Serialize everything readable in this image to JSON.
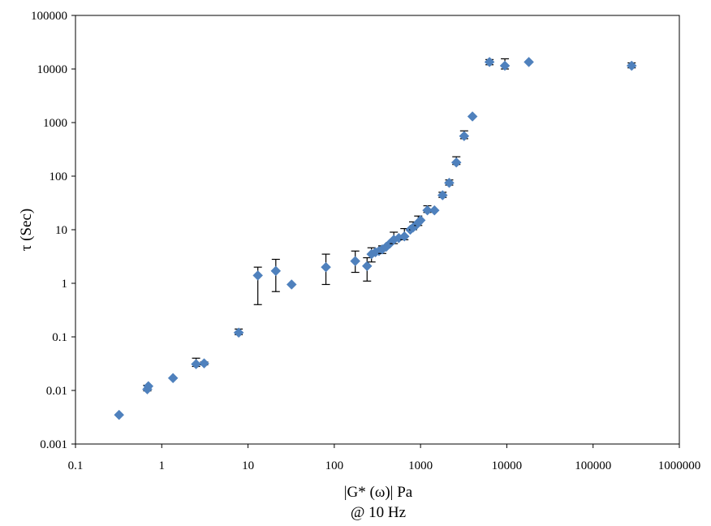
{
  "chart_data": {
    "type": "scatter",
    "title": "",
    "xlabel": "|G* (ω)| Pa",
    "xlabel_sub": "@ 10 Hz",
    "ylabel": "τ (Sec)",
    "xscale": "log",
    "yscale": "log",
    "xlim": [
      0.1,
      1000000
    ],
    "ylim": [
      0.001,
      100000
    ],
    "x_ticks": [
      0.1,
      1,
      10,
      100,
      1000,
      10000,
      100000,
      1000000
    ],
    "x_tick_labels": [
      "0.1",
      "1",
      "10",
      "100",
      "1000",
      "10000",
      "100000",
      "1000000"
    ],
    "y_ticks": [
      0.001,
      0.01,
      0.1,
      1,
      10,
      100,
      1000,
      10000,
      100000
    ],
    "y_tick_labels": [
      "0.001",
      "0.01",
      "0.1",
      "1",
      "10",
      "100",
      "1000",
      "10000",
      "100000"
    ],
    "grid": false,
    "legend": "none",
    "marker": "diamond",
    "colors": {
      "marker": "#4f81bd",
      "error_bar": "#000000",
      "axis": "#000000"
    },
    "series": [
      {
        "points": [
          {
            "x": 0.32,
            "y": 0.0035
          },
          {
            "x": 0.68,
            "y": 0.0105,
            "yerr_low": 0.0098,
            "yerr_high": 0.0125
          },
          {
            "x": 0.7,
            "y": 0.012
          },
          {
            "x": 1.35,
            "y": 0.017
          },
          {
            "x": 2.5,
            "y": 0.031,
            "yerr_low": 0.028,
            "yerr_high": 0.04
          },
          {
            "x": 3.1,
            "y": 0.032,
            "yerr_low": 0.03,
            "yerr_high": 0.034
          },
          {
            "x": 7.8,
            "y": 0.12,
            "yerr_low": 0.11,
            "yerr_high": 0.14
          },
          {
            "x": 13,
            "y": 1.4,
            "yerr_low": 0.4,
            "yerr_high": 2.0
          },
          {
            "x": 21,
            "y": 1.7,
            "yerr_low": 0.7,
            "yerr_high": 2.8
          },
          {
            "x": 32,
            "y": 0.95
          },
          {
            "x": 80,
            "y": 2.0,
            "yerr_low": 0.95,
            "yerr_high": 3.5
          },
          {
            "x": 175,
            "y": 2.6,
            "yerr_low": 1.6,
            "yerr_high": 4.0
          },
          {
            "x": 240,
            "y": 2.1,
            "yerr_low": 1.1,
            "yerr_high": 3.0
          },
          {
            "x": 270,
            "y": 3.5,
            "yerr_low": 2.5,
            "yerr_high": 4.6
          },
          {
            "x": 300,
            "y": 3.8
          },
          {
            "x": 330,
            "y": 4.0
          },
          {
            "x": 360,
            "y": 4.3,
            "yerr_low": 3.6,
            "yerr_high": 5.0
          },
          {
            "x": 400,
            "y": 4.8
          },
          {
            "x": 440,
            "y": 5.5
          },
          {
            "x": 490,
            "y": 6.5,
            "yerr_low": 5.5,
            "yerr_high": 9.0
          },
          {
            "x": 560,
            "y": 7.0
          },
          {
            "x": 650,
            "y": 7.5,
            "yerr_low": 6.5,
            "yerr_high": 10.5
          },
          {
            "x": 760,
            "y": 10.0
          },
          {
            "x": 820,
            "y": 11.0,
            "yerr_low": 10.0,
            "yerr_high": 14.0
          },
          {
            "x": 880,
            "y": 12.0
          },
          {
            "x": 940,
            "y": 13.5,
            "yerr_low": 12.0,
            "yerr_high": 18.0
          },
          {
            "x": 1000,
            "y": 15.0
          },
          {
            "x": 1200,
            "y": 23.0,
            "yerr_low": 21.0,
            "yerr_high": 28.0
          },
          {
            "x": 1450,
            "y": 23.0
          },
          {
            "x": 1800,
            "y": 44.0,
            "yerr_low": 40.0,
            "yerr_high": 50.0
          },
          {
            "x": 2150,
            "y": 75.0,
            "yerr_low": 68.0,
            "yerr_high": 85.0
          },
          {
            "x": 2600,
            "y": 180.0,
            "yerr_low": 165.0,
            "yerr_high": 230.0
          },
          {
            "x": 3200,
            "y": 560.0,
            "yerr_low": 500.0,
            "yerr_high": 700.0
          },
          {
            "x": 4000,
            "y": 1300.0
          },
          {
            "x": 6300,
            "y": 13500.0,
            "yerr_low": 12000.0,
            "yerr_high": 15000.0
          },
          {
            "x": 9500,
            "y": 11500.0,
            "yerr_low": 10000.0,
            "yerr_high": 15500.0
          },
          {
            "x": 18000,
            "y": 13500.0
          },
          {
            "x": 280000,
            "y": 11500.0,
            "yerr_low": 10500.0,
            "yerr_high": 13000.0
          }
        ]
      }
    ]
  }
}
